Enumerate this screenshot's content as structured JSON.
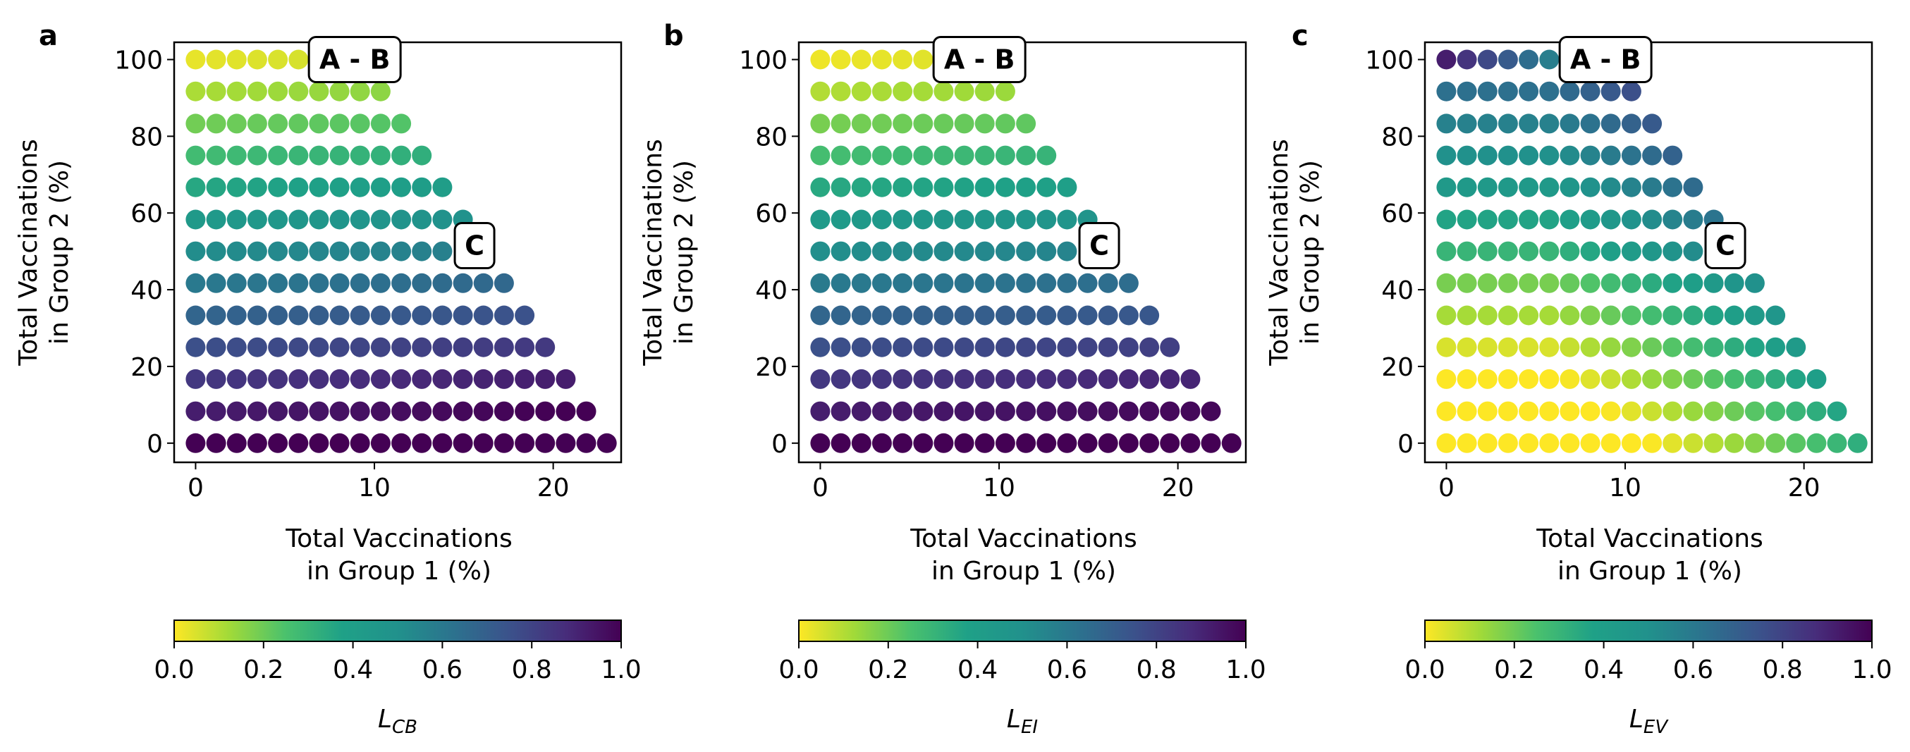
{
  "figure": {
    "panels": [
      {
        "letter": "a",
        "colorbar_label": "L",
        "colorbar_sub": "CB"
      },
      {
        "letter": "b",
        "colorbar_label": "L",
        "colorbar_sub": "EI"
      },
      {
        "letter": "c",
        "colorbar_label": "L",
        "colorbar_sub": "EV"
      }
    ]
  },
  "chart_data": [
    {
      "type": "scatter",
      "panel": "a",
      "xlabel": "Total Vaccinations\nin Group 1 (%)",
      "ylabel": "Total Vaccinations\nin Group 2 (%)",
      "xlim": [
        -1.2,
        23.8
      ],
      "ylim": [
        -5,
        104.5
      ],
      "xticks": [
        0,
        10,
        20
      ],
      "yticks": [
        0,
        20,
        40,
        60,
        80,
        100
      ],
      "x_step": 1.15,
      "y_values": [
        0,
        8.3,
        16.7,
        25,
        33.3,
        41.7,
        50,
        58.3,
        66.7,
        75,
        83.3,
        91.7,
        100
      ],
      "points_per_row": [
        21,
        20,
        19,
        18,
        17,
        16,
        13,
        14,
        13,
        12,
        11,
        10,
        6
      ],
      "color_metric": "L_CB",
      "color_rule": "value increases toward bottom (y = 0) and with x; yellow at y = 100, dark purple at y = 0, x = 0",
      "annotations": [
        {
          "text": "A - B",
          "x": 8.9,
          "y": 100
        },
        {
          "text": "C",
          "x": 15.6,
          "y": 51.5
        }
      ],
      "colorbar": {
        "label": "L_CB",
        "range": [
          0,
          1
        ],
        "ticks": [
          "0.0",
          "0.2",
          "0.4",
          "0.6",
          "0.8",
          "1.0"
        ],
        "colormap": "viridis_r"
      }
    },
    {
      "type": "scatter",
      "panel": "b",
      "xlabel": "Total Vaccinations\nin Group 1 (%)",
      "ylabel": "Total Vaccinations\nin Group 2 (%)",
      "xlim": [
        -1.2,
        23.8
      ],
      "ylim": [
        -5,
        104.5
      ],
      "xticks": [
        0,
        10,
        20
      ],
      "yticks": [
        0,
        20,
        40,
        60,
        80,
        100
      ],
      "x_step": 1.15,
      "y_values": [
        0,
        8.3,
        16.7,
        25,
        33.3,
        41.7,
        50,
        58.3,
        66.7,
        75,
        83.3,
        91.7,
        100
      ],
      "points_per_row": [
        21,
        20,
        19,
        18,
        17,
        16,
        13,
        14,
        13,
        12,
        11,
        10,
        6
      ],
      "color_metric": "L_EI",
      "color_rule": "value increases toward bottom (y = 0) and with x; yellow at y = 100, dark purple at y = 0, x = 0",
      "annotations": [
        {
          "text": "A - B",
          "x": 8.9,
          "y": 100
        },
        {
          "text": "C",
          "x": 15.6,
          "y": 51.5
        }
      ],
      "colorbar": {
        "label": "L_EI",
        "range": [
          0,
          1
        ],
        "ticks": [
          "0.0",
          "0.2",
          "0.4",
          "0.6",
          "0.8",
          "1.0"
        ],
        "colormap": "viridis_r"
      }
    },
    {
      "type": "scatter",
      "panel": "c",
      "xlabel": "Total Vaccinations\nin Group 1 (%)",
      "ylabel": "Total Vaccinations\nin Group 2 (%)",
      "xlim": [
        -1.2,
        23.8
      ],
      "ylim": [
        -5,
        104.5
      ],
      "xticks": [
        0,
        10,
        20
      ],
      "yticks": [
        0,
        20,
        40,
        60,
        80,
        100
      ],
      "x_step": 1.15,
      "y_values": [
        0,
        8.3,
        16.7,
        25,
        33.3,
        41.7,
        50,
        58.3,
        66.7,
        75,
        83.3,
        91.7,
        100
      ],
      "points_per_row": [
        21,
        20,
        19,
        18,
        17,
        16,
        13,
        14,
        13,
        12,
        11,
        10,
        6
      ],
      "color_metric": "L_EV",
      "color_rule": "dark purple at top-left (y = 100), yellow near lower-left and around y = 40 mid-x; increases toward lower-right",
      "annotations": [
        {
          "text": "A - B",
          "x": 8.9,
          "y": 100
        },
        {
          "text": "C",
          "x": 15.6,
          "y": 51.5
        }
      ],
      "colorbar": {
        "label": "L_EV",
        "range": [
          0,
          1
        ],
        "ticks": [
          "0.0",
          "0.2",
          "0.4",
          "0.6",
          "0.8",
          "1.0"
        ],
        "colormap": "viridis_r"
      }
    }
  ]
}
